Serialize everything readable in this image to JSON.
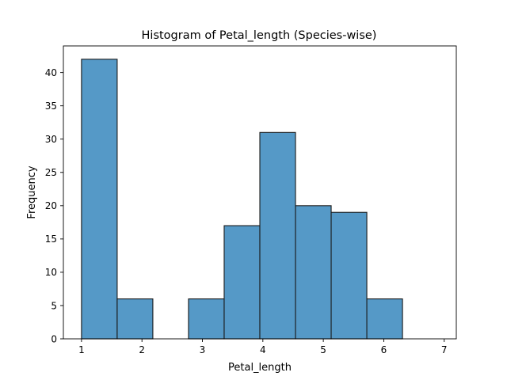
{
  "chart_data": {
    "type": "bar",
    "title": "Histogram of Petal_length (Species-wise)",
    "xlabel": "Petal_length",
    "ylabel": "Frequency",
    "bin_edges": [
      1.0,
      1.59,
      2.18,
      2.77,
      3.36,
      3.95,
      4.54,
      5.13,
      5.72,
      6.31,
      6.9
    ],
    "values": [
      42,
      6,
      0,
      6,
      17,
      31,
      20,
      19,
      6,
      0
    ],
    "xlim": [
      0.7,
      7.2
    ],
    "ylim": [
      0,
      44
    ],
    "x_ticks": [
      1,
      2,
      3,
      4,
      5,
      6,
      7
    ],
    "y_ticks": [
      0,
      5,
      10,
      15,
      20,
      25,
      30,
      35,
      40
    ],
    "bar_color": "#5599c7",
    "edge_color": "#1a1a1a",
    "grid": false,
    "legend": "none"
  }
}
